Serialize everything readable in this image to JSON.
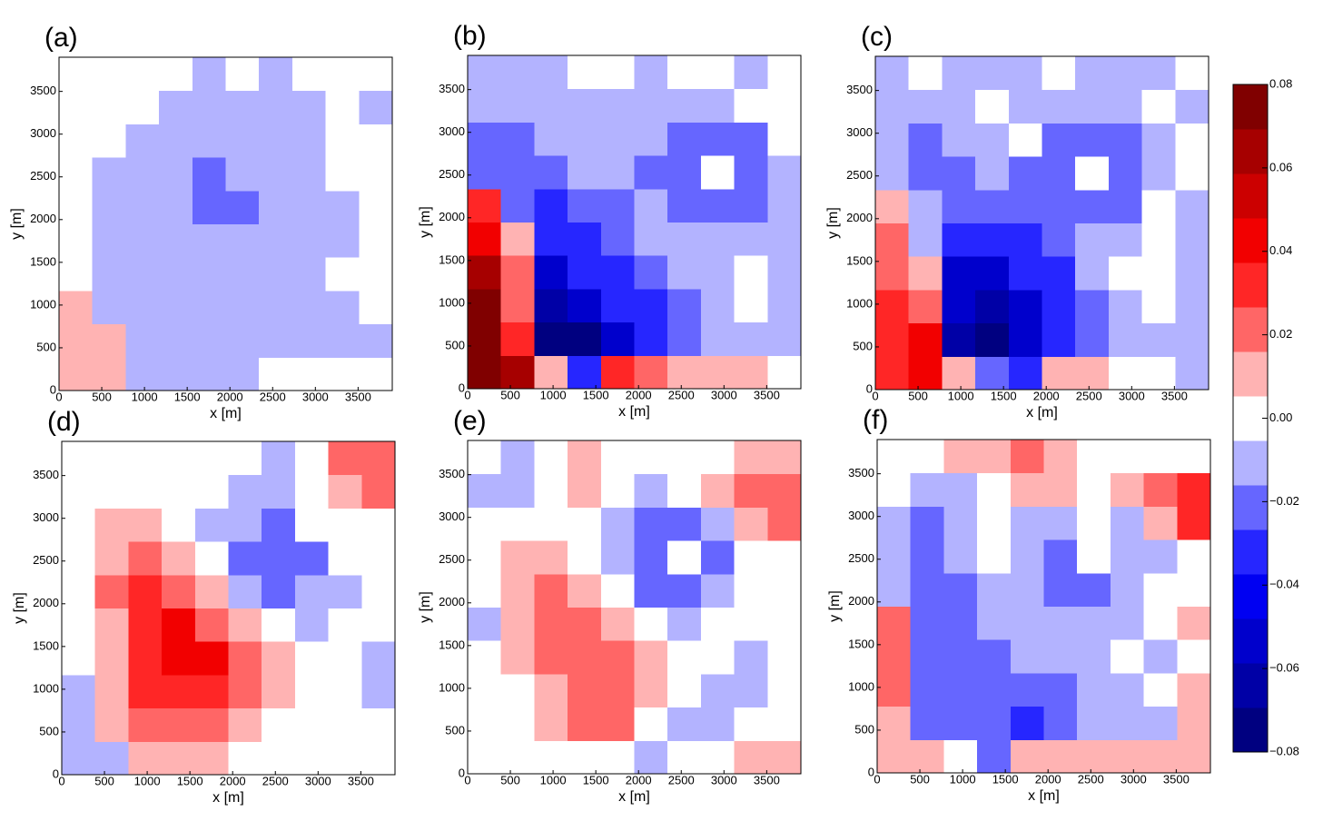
{
  "chart_data": [
    {
      "type": "heatmap",
      "label": "(a)",
      "xlabel": "x [m]",
      "ylabel": "y [m]",
      "xlim": [
        0,
        3900
      ],
      "ylim": [
        0,
        3900
      ],
      "xticks": [
        0,
        500,
        1000,
        1500,
        2000,
        2500,
        3000,
        3500
      ],
      "yticks": [
        0,
        500,
        1000,
        1500,
        2000,
        2500,
        3000,
        3500
      ],
      "x": [
        195,
        585,
        975,
        1365,
        1755,
        2145,
        2535,
        2925,
        3315,
        3705
      ],
      "y": [
        195,
        585,
        975,
        1365,
        1755,
        2145,
        2535,
        2925,
        3315,
        3705
      ],
      "z": [
        [
          0.01,
          0.01,
          -0.01,
          -0.01,
          -0.01,
          -0.01,
          0,
          0,
          0,
          0
        ],
        [
          0.01,
          0.01,
          -0.01,
          -0.01,
          -0.01,
          -0.01,
          -0.01,
          -0.01,
          -0.01,
          -0.01
        ],
        [
          0.01,
          -0.01,
          -0.01,
          -0.01,
          -0.01,
          -0.01,
          -0.01,
          -0.01,
          -0.01,
          0
        ],
        [
          0,
          -0.01,
          -0.01,
          -0.01,
          -0.01,
          -0.01,
          -0.01,
          -0.01,
          0,
          0
        ],
        [
          0,
          -0.01,
          -0.01,
          -0.01,
          -0.01,
          -0.01,
          -0.01,
          -0.01,
          -0.01,
          0
        ],
        [
          0,
          -0.01,
          -0.01,
          -0.01,
          -0.025,
          -0.025,
          -0.01,
          -0.01,
          -0.01,
          0
        ],
        [
          0,
          -0.01,
          -0.01,
          -0.01,
          -0.025,
          -0.01,
          -0.01,
          -0.01,
          0,
          0
        ],
        [
          0,
          0,
          -0.01,
          -0.01,
          -0.01,
          -0.01,
          -0.01,
          -0.01,
          0,
          0
        ],
        [
          0,
          0,
          0,
          -0.01,
          -0.01,
          -0.01,
          -0.01,
          -0.01,
          0,
          -0.01
        ],
        [
          0,
          0,
          0,
          0,
          -0.01,
          0,
          -0.01,
          0,
          0,
          0
        ]
      ]
    },
    {
      "type": "heatmap",
      "label": "(b)",
      "xlabel": "x [m]",
      "ylabel": "y [m]",
      "xlim": [
        0,
        3900
      ],
      "ylim": [
        0,
        3900
      ],
      "xticks": [
        0,
        500,
        1000,
        1500,
        2000,
        2500,
        3000,
        3500
      ],
      "yticks": [
        0,
        500,
        1000,
        1500,
        2000,
        2500,
        3000,
        3500
      ],
      "x": [
        195,
        585,
        975,
        1365,
        1755,
        2145,
        2535,
        2925,
        3315,
        3705
      ],
      "y": [
        195,
        585,
        975,
        1365,
        1755,
        2145,
        2535,
        2925,
        3315,
        3705
      ],
      "z": [
        [
          0.07,
          0.06,
          0.01,
          -0.035,
          0.03,
          0.02,
          0.01,
          0.01,
          0.01,
          0
        ],
        [
          0.07,
          0.03,
          -0.07,
          -0.07,
          -0.05,
          -0.035,
          -0.025,
          -0.01,
          -0.01,
          -0.01
        ],
        [
          0.07,
          0.02,
          -0.06,
          -0.05,
          -0.035,
          -0.035,
          -0.025,
          -0.01,
          0,
          -0.01
        ],
        [
          0.06,
          0.02,
          -0.05,
          -0.035,
          -0.035,
          -0.025,
          -0.01,
          -0.01,
          0,
          -0.01
        ],
        [
          0.04,
          0.01,
          -0.035,
          -0.035,
          -0.025,
          -0.01,
          -0.01,
          -0.01,
          -0.01,
          -0.01
        ],
        [
          0.03,
          -0.025,
          -0.035,
          -0.025,
          -0.025,
          -0.01,
          -0.025,
          -0.025,
          -0.025,
          -0.01
        ],
        [
          -0.025,
          -0.025,
          -0.025,
          -0.01,
          -0.01,
          -0.025,
          -0.025,
          0,
          -0.025,
          -0.01
        ],
        [
          -0.025,
          -0.025,
          -0.01,
          -0.01,
          -0.01,
          -0.01,
          -0.025,
          -0.025,
          -0.025,
          0
        ],
        [
          -0.01,
          -0.01,
          -0.01,
          -0.01,
          -0.01,
          -0.01,
          -0.01,
          -0.01,
          0,
          0
        ],
        [
          -0.01,
          -0.01,
          -0.01,
          0,
          0,
          -0.01,
          0,
          0,
          -0.01,
          0
        ]
      ]
    },
    {
      "type": "heatmap",
      "label": "(c)",
      "xlabel": "x [m]",
      "ylabel": "y [m]",
      "xlim": [
        0,
        3900
      ],
      "ylim": [
        0,
        3900
      ],
      "xticks": [
        0,
        500,
        1000,
        1500,
        2000,
        2500,
        3000,
        3500
      ],
      "yticks": [
        0,
        500,
        1000,
        1500,
        2000,
        2500,
        3000,
        3500
      ],
      "x": [
        195,
        585,
        975,
        1365,
        1755,
        2145,
        2535,
        2925,
        3315,
        3705
      ],
      "y": [
        195,
        585,
        975,
        1365,
        1755,
        2145,
        2535,
        2925,
        3315,
        3705
      ],
      "z": [
        [
          0.03,
          0.04,
          0.01,
          -0.025,
          -0.035,
          0.01,
          0.01,
          0,
          0,
          -0.01
        ],
        [
          0.03,
          0.04,
          -0.06,
          -0.07,
          -0.05,
          -0.035,
          -0.025,
          -0.01,
          -0.01,
          -0.01
        ],
        [
          0.03,
          0.02,
          -0.05,
          -0.06,
          -0.05,
          -0.035,
          -0.025,
          -0.01,
          0,
          -0.01
        ],
        [
          0.02,
          0.01,
          -0.05,
          -0.05,
          -0.035,
          -0.035,
          -0.01,
          0,
          0,
          -0.01
        ],
        [
          0.02,
          -0.01,
          -0.035,
          -0.035,
          -0.035,
          -0.025,
          -0.01,
          -0.01,
          0,
          -0.01
        ],
        [
          0.01,
          -0.01,
          -0.025,
          -0.025,
          -0.025,
          -0.025,
          -0.025,
          -0.025,
          0,
          -0.01
        ],
        [
          -0.01,
          -0.025,
          -0.025,
          -0.01,
          -0.025,
          -0.025,
          0,
          -0.025,
          -0.01,
          0
        ],
        [
          -0.01,
          -0.025,
          -0.01,
          -0.01,
          0,
          -0.025,
          -0.025,
          -0.025,
          -0.01,
          0
        ],
        [
          -0.01,
          -0.01,
          -0.01,
          0,
          -0.01,
          -0.01,
          -0.01,
          -0.01,
          0,
          -0.01
        ],
        [
          -0.01,
          0,
          -0.01,
          -0.01,
          -0.01,
          0,
          -0.01,
          -0.01,
          -0.01,
          0
        ]
      ]
    },
    {
      "type": "heatmap",
      "label": "(d)",
      "xlabel": "x [m]",
      "ylabel": "y [m]",
      "xlim": [
        0,
        3900
      ],
      "ylim": [
        0,
        3900
      ],
      "xticks": [
        0,
        500,
        1000,
        1500,
        2000,
        2500,
        3000,
        3500
      ],
      "yticks": [
        0,
        500,
        1000,
        1500,
        2000,
        2500,
        3000,
        3500
      ],
      "x": [
        195,
        585,
        975,
        1365,
        1755,
        2145,
        2535,
        2925,
        3315,
        3705
      ],
      "y": [
        195,
        585,
        975,
        1365,
        1755,
        2145,
        2535,
        2925,
        3315,
        3705
      ],
      "z": [
        [
          -0.01,
          -0.01,
          0.01,
          0.01,
          0.01,
          0,
          0,
          0,
          0,
          0
        ],
        [
          -0.01,
          0.01,
          0.02,
          0.02,
          0.02,
          0.01,
          0,
          0,
          0,
          0
        ],
        [
          -0.01,
          0.01,
          0.03,
          0.03,
          0.03,
          0.02,
          0.01,
          0,
          0,
          -0.01
        ],
        [
          0,
          0.01,
          0.03,
          0.04,
          0.04,
          0.02,
          0.01,
          0,
          0,
          -0.01
        ],
        [
          0,
          0.01,
          0.03,
          0.04,
          0.02,
          0.01,
          0,
          -0.01,
          0,
          0
        ],
        [
          0,
          0.02,
          0.03,
          0.02,
          0.01,
          -0.01,
          -0.025,
          -0.01,
          -0.01,
          0
        ],
        [
          0,
          0.01,
          0.02,
          0.01,
          0,
          -0.025,
          -0.025,
          -0.025,
          0,
          0
        ],
        [
          0,
          0.01,
          0.01,
          0,
          -0.01,
          -0.01,
          -0.025,
          0,
          0,
          0
        ],
        [
          0,
          0,
          0,
          0,
          0,
          -0.01,
          -0.01,
          0,
          0.01,
          0.02
        ],
        [
          0,
          0,
          0,
          0,
          0,
          0,
          -0.01,
          0,
          0.02,
          0.02
        ]
      ]
    },
    {
      "type": "heatmap",
      "label": "(e)",
      "xlabel": "x [m]",
      "ylabel": "y [m]",
      "xlim": [
        0,
        3900
      ],
      "ylim": [
        0,
        3900
      ],
      "xticks": [
        0,
        500,
        1000,
        1500,
        2000,
        2500,
        3000,
        3500
      ],
      "yticks": [
        0,
        500,
        1000,
        1500,
        2000,
        2500,
        3000,
        3500
      ],
      "x": [
        195,
        585,
        975,
        1365,
        1755,
        2145,
        2535,
        2925,
        3315,
        3705
      ],
      "y": [
        195,
        585,
        975,
        1365,
        1755,
        2145,
        2535,
        2925,
        3315,
        3705
      ],
      "z": [
        [
          0,
          0,
          0,
          0,
          0,
          -0.01,
          0,
          0,
          0.01,
          0.01
        ],
        [
          0,
          0,
          0.01,
          0.02,
          0.02,
          0,
          -0.01,
          -0.01,
          0,
          0
        ],
        [
          0,
          0,
          0.01,
          0.02,
          0.02,
          0.01,
          0,
          -0.01,
          -0.01,
          0
        ],
        [
          0,
          0.01,
          0.02,
          0.02,
          0.02,
          0.01,
          0,
          0,
          -0.01,
          0
        ],
        [
          -0.01,
          0.01,
          0.02,
          0.02,
          0.01,
          0,
          -0.01,
          0,
          0,
          0
        ],
        [
          0,
          0.01,
          0.02,
          0.01,
          0,
          -0.025,
          -0.025,
          -0.01,
          0,
          0
        ],
        [
          0,
          0.01,
          0.01,
          0,
          -0.01,
          -0.025,
          0,
          -0.025,
          0,
          0
        ],
        [
          0,
          0,
          0,
          0,
          -0.01,
          -0.025,
          -0.025,
          -0.01,
          0.01,
          0.02
        ],
        [
          -0.01,
          -0.01,
          0,
          0.01,
          0,
          -0.01,
          0,
          0.01,
          0.02,
          0.02
        ],
        [
          0,
          -0.01,
          0,
          0.01,
          0,
          0,
          0,
          0,
          0.01,
          0.01
        ]
      ]
    },
    {
      "type": "heatmap",
      "label": "(f)",
      "xlabel": "x [m]",
      "ylabel": "y [m]",
      "xlim": [
        0,
        3900
      ],
      "ylim": [
        0,
        3900
      ],
      "xticks": [
        0,
        500,
        1000,
        1500,
        2000,
        2500,
        3000,
        3500
      ],
      "yticks": [
        0,
        500,
        1000,
        1500,
        2000,
        2500,
        3000,
        3500
      ],
      "x": [
        195,
        585,
        975,
        1365,
        1755,
        2145,
        2535,
        2925,
        3315,
        3705
      ],
      "y": [
        195,
        585,
        975,
        1365,
        1755,
        2145,
        2535,
        2925,
        3315,
        3705
      ],
      "z": [
        [
          0.01,
          0.01,
          0,
          -0.025,
          0.01,
          0.01,
          0.01,
          0.01,
          0.01,
          0.01
        ],
        [
          0.01,
          -0.025,
          -0.025,
          -0.025,
          -0.035,
          -0.025,
          -0.01,
          -0.01,
          -0.01,
          0.01
        ],
        [
          0.02,
          -0.025,
          -0.025,
          -0.025,
          -0.025,
          -0.025,
          -0.01,
          -0.01,
          0,
          0.01
        ],
        [
          0.02,
          -0.025,
          -0.025,
          -0.025,
          -0.01,
          -0.01,
          -0.01,
          0,
          -0.01,
          0
        ],
        [
          0.02,
          -0.025,
          -0.025,
          -0.01,
          -0.01,
          -0.01,
          -0.01,
          -0.01,
          0,
          0.01
        ],
        [
          -0.01,
          -0.025,
          -0.025,
          -0.01,
          -0.01,
          -0.025,
          -0.025,
          -0.01,
          0,
          0
        ],
        [
          -0.01,
          -0.025,
          -0.01,
          0,
          -0.01,
          -0.025,
          0,
          -0.01,
          -0.01,
          0
        ],
        [
          -0.01,
          -0.025,
          -0.01,
          0,
          -0.01,
          -0.01,
          0,
          -0.01,
          0.01,
          0.03
        ],
        [
          0,
          -0.01,
          -0.01,
          0,
          0.01,
          0.01,
          0,
          0.01,
          0.02,
          0.03
        ],
        [
          0,
          0,
          0.01,
          0.01,
          0.02,
          0.01,
          0,
          0,
          0,
          0
        ]
      ]
    },
    {
      "type": "colorbar",
      "zlim": [
        -0.08,
        0.08
      ],
      "zticks": [
        0.08,
        0.06,
        0.04,
        0.02,
        {
          "value": 0,
          "label": "0.00"
        },
        {
          "value": -0.02,
          "label": "−0.02"
        },
        {
          "value": -0.04,
          "label": "−0.04"
        },
        {
          "value": -0.06,
          "label": "−0.06"
        },
        {
          "value": -0.08,
          "label": "−0.08"
        }
      ],
      "colors": [
        "#000080",
        "#0000a6",
        "#0000cc",
        "#0000f2",
        "#2626ff",
        "#6666ff",
        "#b3b3ff",
        "#ffffff",
        "#ffb3b3",
        "#ff6666",
        "#ff2626",
        "#f20000",
        "#cc0000",
        "#a60000",
        "#800000"
      ]
    }
  ]
}
